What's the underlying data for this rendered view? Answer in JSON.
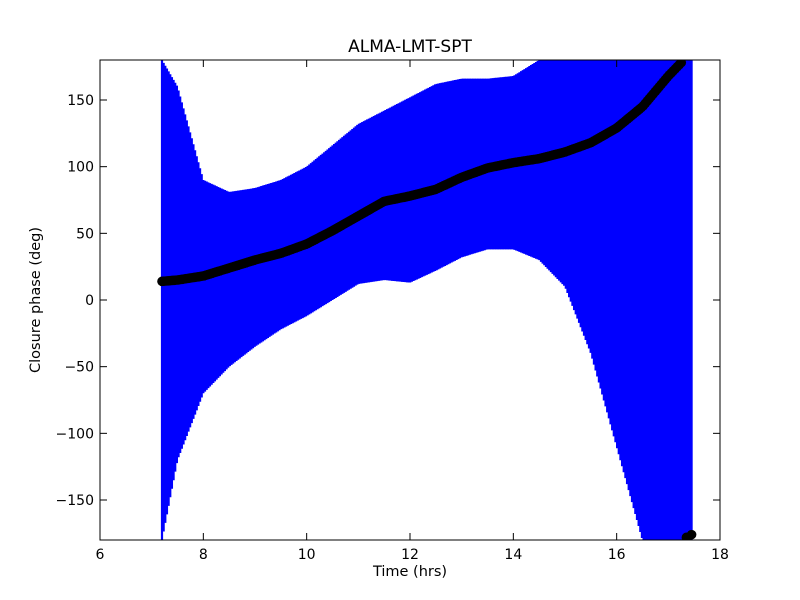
{
  "chart_data": {
    "type": "scatter",
    "title": "ALMA-LMT-SPT",
    "xlabel": "Time (hrs)",
    "ylabel": "Closure phase (deg)",
    "xlim": [
      6,
      18
    ],
    "ylim": [
      -180,
      180
    ],
    "xticks": [
      6,
      8,
      10,
      12,
      14,
      16,
      18
    ],
    "yticks": [
      -150,
      -100,
      -50,
      0,
      50,
      100,
      150
    ],
    "xtick_labels": [
      "6",
      "8",
      "10",
      "12",
      "14",
      "16",
      "18"
    ],
    "ytick_labels": [
      "−150",
      "−100",
      "−50",
      "0",
      "50",
      "100",
      "150"
    ],
    "grid": false,
    "colors": {
      "errorbar": "#0000ff",
      "points": "#000000"
    },
    "series": [
      {
        "marker": "circle",
        "x": [
          7.2,
          7.5,
          8.0,
          8.5,
          9.0,
          9.5,
          10.0,
          10.5,
          11.0,
          11.5,
          12.0,
          12.5,
          13.0,
          13.5,
          14.0,
          14.5,
          15.0,
          15.5,
          16.0,
          16.5,
          17.0,
          17.25,
          17.45
        ],
        "y": [
          14,
          15,
          18,
          24,
          30,
          35,
          42,
          52,
          63,
          74,
          78,
          83,
          92,
          99,
          103,
          106,
          111,
          118,
          129,
          145,
          168,
          178,
          -176
        ],
        "upper": [
          180,
          160,
          90,
          81,
          84,
          90,
          100,
          116,
          132,
          142,
          152,
          162,
          166,
          166,
          168,
          180,
          180,
          180,
          180,
          180,
          180,
          180,
          180
        ],
        "lower": [
          -180,
          -120,
          -70,
          -50,
          -35,
          -22,
          -12,
          0,
          12,
          15,
          13,
          22,
          32,
          38,
          38,
          30,
          10,
          -40,
          -110,
          -180,
          -180,
          -180,
          -180
        ]
      }
    ]
  }
}
